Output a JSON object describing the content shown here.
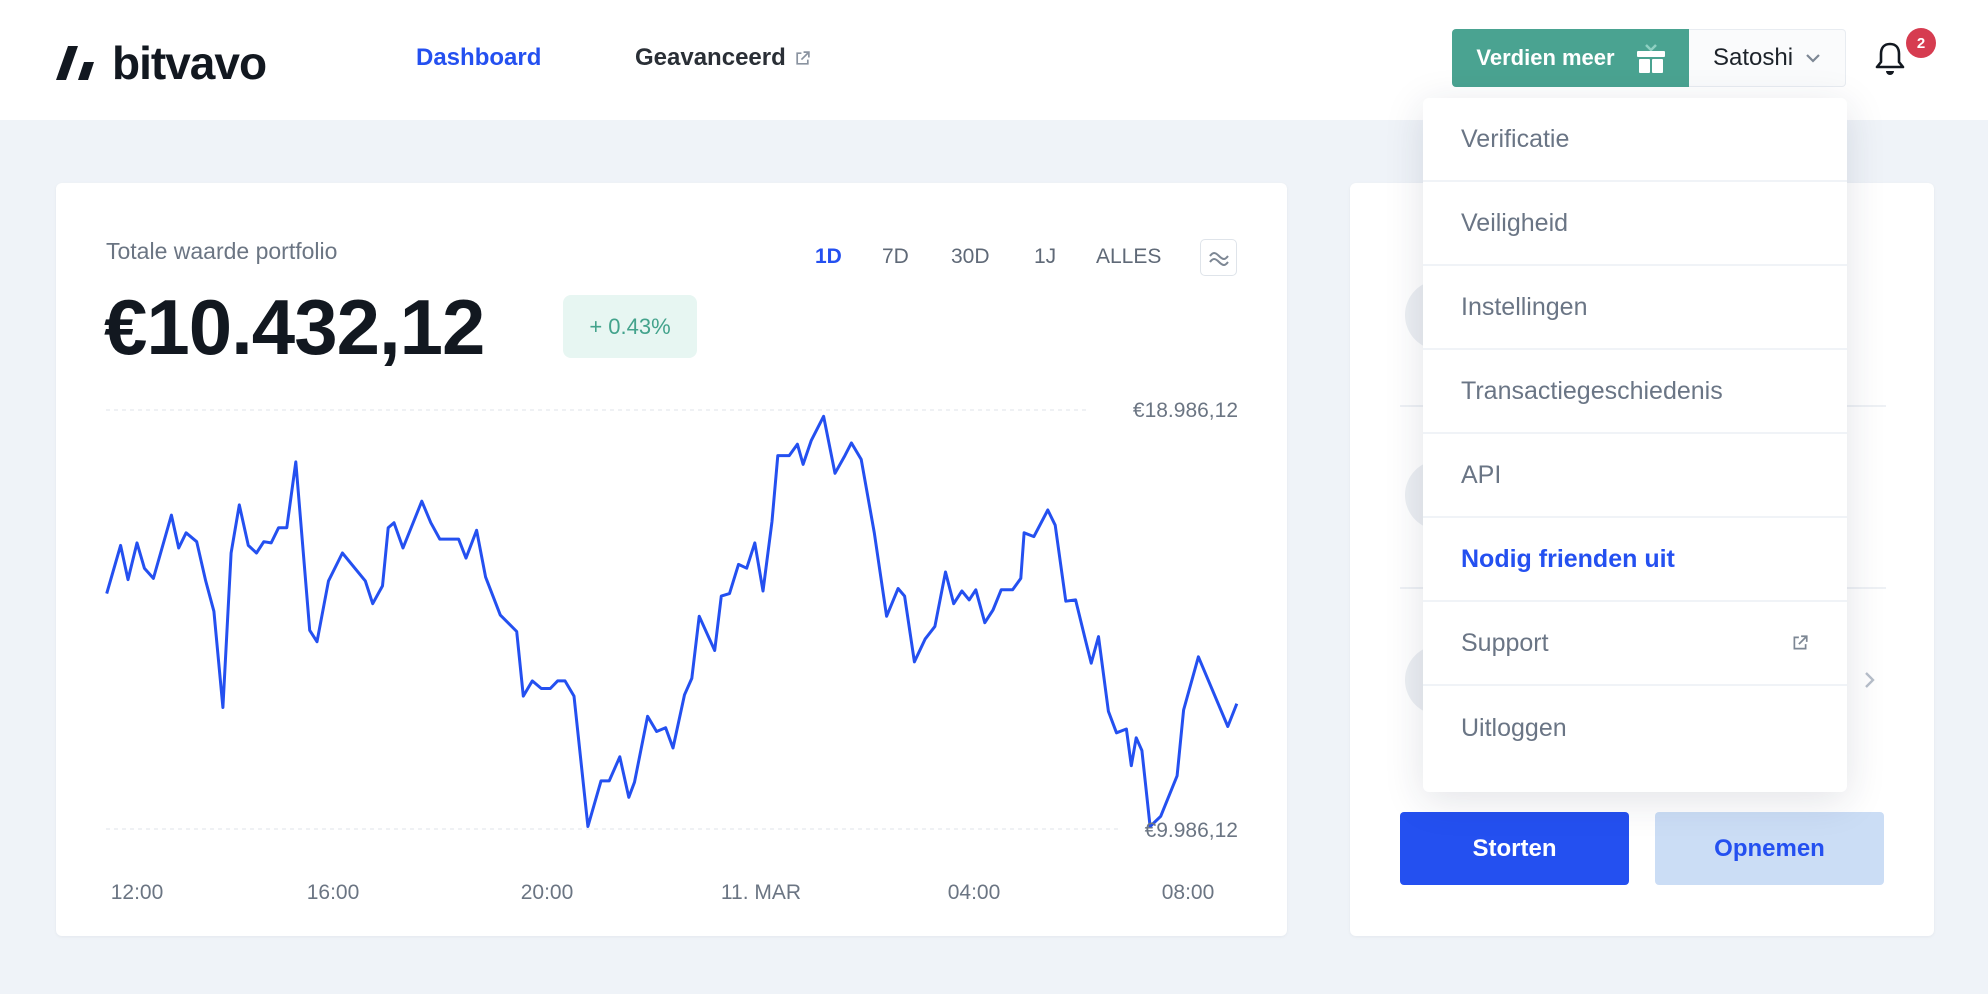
{
  "header": {
    "logo_text": "bitvavo",
    "nav": [
      {
        "label": "Dashboard",
        "active": true
      },
      {
        "label": "Geavanceerd",
        "external": true
      }
    ],
    "earn_button": "Verdien meer",
    "user_name": "Satoshi",
    "notifications_count": "2"
  },
  "portfolio": {
    "label": "Totale waarde portfolio",
    "value": "€10.432,12",
    "change": "+ 0.43%",
    "ranges": [
      "1D",
      "7D",
      "30D",
      "1J",
      "ALLES"
    ],
    "active_range": "1D"
  },
  "dropdown": {
    "items": [
      {
        "label": "Verificatie"
      },
      {
        "label": "Veiligheid"
      },
      {
        "label": "Instellingen"
      },
      {
        "label": "Transactiegeschiedenis"
      },
      {
        "label": "API"
      },
      {
        "label": "Nodig frienden uit",
        "highlight": true
      },
      {
        "label": "Support",
        "external": true
      },
      {
        "label": "Uitloggen"
      }
    ]
  },
  "actions": {
    "deposit": "Storten",
    "withdraw": "Opnemen"
  },
  "colors": {
    "accent": "#2450f0",
    "earn": "#4aa391",
    "positive": "#43a38c",
    "badge": "#d63c50"
  },
  "chart_data": {
    "type": "line",
    "max_label": "€18.986,12",
    "min_label": "€9.986,12",
    "ylim": [
      9986.12,
      18986.12
    ],
    "x_ticks": [
      "12:00",
      "16:00",
      "20:00",
      "11. MAR",
      "04:00",
      "08:00"
    ],
    "series": [
      {
        "points": [
          [
            "11:23",
            15043
          ],
          [
            "11:40",
            16077
          ],
          [
            "11:49",
            15343
          ],
          [
            "12:00",
            16131
          ],
          [
            "12:09",
            15587
          ],
          [
            "12:20",
            15370
          ],
          [
            "12:42",
            16729
          ],
          [
            "12:51",
            16022
          ],
          [
            "13:00",
            16349
          ],
          [
            "13:13",
            16158
          ],
          [
            "13:24",
            15315
          ],
          [
            "13:34",
            14663
          ],
          [
            "13:45",
            12596
          ],
          [
            "13:55",
            15914
          ],
          [
            "14:05",
            16947
          ],
          [
            "14:16",
            16077
          ],
          [
            "14:26",
            15914
          ],
          [
            "14:35",
            16158
          ],
          [
            "14:44",
            16131
          ],
          [
            "14:53",
            16457
          ],
          [
            "15:03",
            16457
          ],
          [
            "15:14",
            17871
          ],
          [
            "15:31",
            14255
          ],
          [
            "15:40",
            14010
          ],
          [
            "15:54",
            15315
          ],
          [
            "16:11",
            15914
          ],
          [
            "16:39",
            15315
          ],
          [
            "16:48",
            14826
          ],
          [
            "17:00",
            15207
          ],
          [
            "17:07",
            16457
          ],
          [
            "17:14",
            16566
          ],
          [
            "17:25",
            16022
          ],
          [
            "17:48",
            17028
          ],
          [
            "17:59",
            16566
          ],
          [
            "18:10",
            16213
          ],
          [
            "18:33",
            16213
          ],
          [
            "18:42",
            15805
          ],
          [
            "18:55",
            16403
          ],
          [
            "19:06",
            15397
          ],
          [
            "19:24",
            14581
          ],
          [
            "19:44",
            14228
          ],
          [
            "19:52",
            12841
          ],
          [
            "20:03",
            13167
          ],
          [
            "20:14",
            13004
          ],
          [
            "20:25",
            13004
          ],
          [
            "20:34",
            13167
          ],
          [
            "20:43",
            13167
          ],
          [
            "20:54",
            12841
          ],
          [
            "21:11",
            10040
          ],
          [
            "21:27",
            11019
          ],
          [
            "21:37",
            11019
          ],
          [
            "21:50",
            11536
          ],
          [
            "22:01",
            10666
          ],
          [
            "22:08",
            10992
          ],
          [
            "22:24",
            12406
          ],
          [
            "22:35",
            12080
          ],
          [
            "22:46",
            12161
          ],
          [
            "22:55",
            11726
          ],
          [
            "23:09",
            12868
          ],
          [
            "23:18",
            13222
          ],
          [
            "23:27",
            14554
          ],
          [
            "23:46",
            13820
          ],
          [
            "23:54",
            14989
          ],
          [
            "00:04",
            15043
          ],
          [
            "00:15",
            15669
          ],
          [
            "00:25",
            15587
          ],
          [
            "00:35",
            16131
          ],
          [
            "00:45",
            15098
          ],
          [
            "00:56",
            16593
          ],
          [
            "01:03",
            18007
          ],
          [
            "01:17",
            18007
          ],
          [
            "01:27",
            18252
          ],
          [
            "01:34",
            17817
          ],
          [
            "01:44",
            18333
          ],
          [
            "01:59",
            18850
          ],
          [
            "02:13",
            17626
          ],
          [
            "02:25",
            18007
          ],
          [
            "02:33",
            18279
          ],
          [
            "02:45",
            17926
          ],
          [
            "03:01",
            16349
          ],
          [
            "03:16",
            14554
          ],
          [
            "03:30",
            15152
          ],
          [
            "03:38",
            14989
          ],
          [
            "03:50",
            13575
          ],
          [
            "04:03",
            14065
          ],
          [
            "04:15",
            14337
          ],
          [
            "04:28",
            15506
          ],
          [
            "04:38",
            14826
          ],
          [
            "04:48",
            15098
          ],
          [
            "04:57",
            14907
          ],
          [
            "05:05",
            15125
          ],
          [
            "05:16",
            14418
          ],
          [
            "05:26",
            14690
          ],
          [
            "05:36",
            15125
          ],
          [
            "05:50",
            15125
          ],
          [
            "06:00",
            15370
          ],
          [
            "06:04",
            16349
          ],
          [
            "06:16",
            16267
          ],
          [
            "06:33",
            16838
          ],
          [
            "06:42",
            16512
          ],
          [
            "06:55",
            14880
          ],
          [
            "07:07",
            14907
          ],
          [
            "07:18",
            14119
          ],
          [
            "07:26",
            13548
          ],
          [
            "07:35",
            14119
          ],
          [
            "07:47",
            12515
          ],
          [
            "07:57",
            12053
          ],
          [
            "08:09",
            12134
          ],
          [
            "08:15",
            11346
          ],
          [
            "08:21",
            11944
          ],
          [
            "08:28",
            11672
          ],
          [
            "08:38",
            10040
          ],
          [
            "08:51",
            10258
          ],
          [
            "09:11",
            11128
          ],
          [
            "09:19",
            12542
          ],
          [
            "09:37",
            13684
          ],
          [
            "10:13",
            12188
          ],
          [
            "10:24",
            12678
          ]
        ]
      }
    ],
    "color": "#2450f0",
    "grid": false
  }
}
